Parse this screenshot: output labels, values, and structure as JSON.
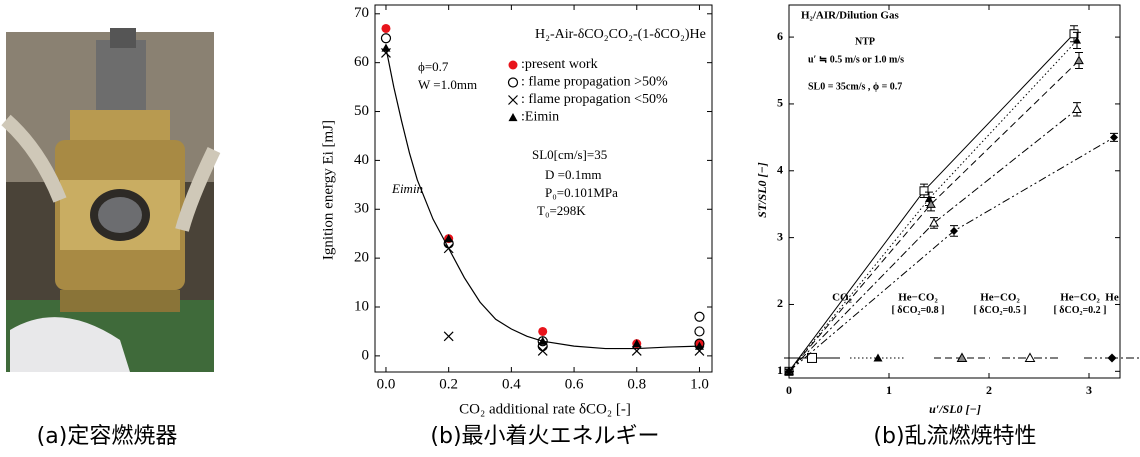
{
  "figure": {
    "panels": [
      {
        "caption": "(a)定容燃焼器"
      },
      {
        "caption": "(b)最小着火エネルギー"
      },
      {
        "caption": "(b)乱流燃焼特性"
      }
    ]
  },
  "chart_data": [
    {
      "type": "scatter",
      "title": "H₂-Air-δCO₂CO₂-(1-δCO₂)He",
      "x_label": "CO₂ additional rate δCO₂ [-]",
      "y_label": "Ignition energy Ei  [mJ]",
      "xlim": [
        -0.035,
        1.04
      ],
      "ylim": [
        -3.3,
        71.8
      ],
      "xticks": [
        {
          "value": 0,
          "label": "0.0"
        },
        0.2,
        0.4,
        0.6,
        0.8,
        {
          "value": 1,
          "label": "1.0"
        }
      ],
      "yticks": [
        0,
        10,
        20,
        30,
        40,
        50,
        60,
        70
      ],
      "annotations": [
        "ϕ=0.7",
        "W =1.0mm",
        "SL0[cm/s]=35",
        "D =0.1mm",
        "P₀=0.101MPa",
        "T₀=298K",
        "Eimin"
      ],
      "series": [
        {
          "name": ":present work",
          "color": "#e8141b",
          "marker": "filled-circle",
          "x": [
            0,
            0.2,
            0.5,
            0.8,
            1.0
          ],
          "values": [
            67,
            24,
            5,
            2.5,
            2.5
          ]
        },
        {
          "name": ": flame propagation >50%",
          "color": "#000000",
          "marker": "open-circle",
          "x": [
            0,
            0.2,
            0.5,
            0.5,
            1.0,
            1.0,
            1.0
          ],
          "values": [
            65,
            23,
            3,
            2,
            8,
            5,
            2.5
          ]
        },
        {
          "name": ": flame propagation <50%",
          "color": "#000000",
          "marker": "cross",
          "x": [
            0,
            0.2,
            0.2,
            0.5,
            0.8,
            1.0
          ],
          "values": [
            62,
            22,
            4,
            1,
            1,
            1
          ]
        },
        {
          "name": ":Eimin",
          "color": "#000000",
          "marker": "filled-triangle",
          "x": [
            0,
            0.2,
            0.5,
            0.8,
            1.0
          ],
          "values": [
            63,
            24,
            3,
            2.5,
            2
          ]
        }
      ],
      "fit": {
        "color": "#000000",
        "x": [
          0,
          0.025,
          0.05,
          0.075,
          0.1,
          0.15,
          0.2,
          0.25,
          0.3,
          0.35,
          0.4,
          0.45,
          0.5,
          0.6,
          0.7,
          0.8,
          0.9,
          1.0
        ],
        "values": [
          63,
          55,
          48,
          41.5,
          36,
          28,
          22,
          16,
          11,
          7.5,
          5.5,
          4,
          3,
          2,
          1.5,
          1.5,
          1.8,
          2
        ]
      }
    },
    {
      "type": "scatter",
      "title": "H₂/AIR/Dilution Gas",
      "x_label": "u′/SL0 [−]",
      "y_label": "ST/SL0 [−]",
      "xlim": [
        0,
        3.31
      ],
      "ylim": [
        0.9,
        6.48
      ],
      "xticks": [
        0,
        1,
        2,
        3
      ],
      "yticks": [
        1,
        2,
        3,
        4,
        5,
        6
      ],
      "annotations": [
        "NTP",
        "u′ ≒ 0.5 m/s or 1.0 m/s",
        "SL0 = 35cm/s , ϕ = 0.7"
      ],
      "series": [
        {
          "name": "CO₂",
          "color": "#000000",
          "marker": "open-square",
          "linestyle": "solid",
          "x": [
            0,
            1.35,
            2.85
          ],
          "values": [
            1,
            3.7,
            6.05
          ],
          "errors": [
            0.03,
            0.1,
            0.12
          ]
        },
        {
          "name": "He−CO₂",
          "note": "[ δCO₂=0.8 ]",
          "color": "#000000",
          "marker": "filled-triangle",
          "linestyle": "dotted",
          "x": [
            0,
            1.4,
            2.88
          ],
          "values": [
            1,
            3.58,
            5.95
          ],
          "errors": [
            0.03,
            0.1,
            0.12
          ]
        },
        {
          "name": "He−CO₂",
          "note": "[ δCO₂=0.5 ]",
          "color": "#000000",
          "marker": "half-triangle",
          "linestyle": "dashed",
          "x": [
            0,
            1.42,
            2.9
          ],
          "values": [
            1,
            3.5,
            5.65
          ],
          "errors": [
            0.03,
            0.1,
            0.12
          ]
        },
        {
          "name": "He−CO₂",
          "note": "[ δCO₂=0.2 ]",
          "color": "#000000",
          "marker": "open-triangle",
          "linestyle": "dashdot",
          "x": [
            0,
            1.45,
            2.88
          ],
          "values": [
            1,
            3.22,
            4.92
          ],
          "errors": [
            0.03,
            0.08,
            0.1
          ]
        },
        {
          "name": "He",
          "color": "#000000",
          "marker": "filled-diamond",
          "linestyle": "dashdotdot",
          "x": [
            0,
            1.65,
            3.25
          ],
          "values": [
            1,
            3.1,
            4.5
          ],
          "errors": [
            0.03,
            0.08,
            0.06
          ]
        }
      ]
    }
  ]
}
